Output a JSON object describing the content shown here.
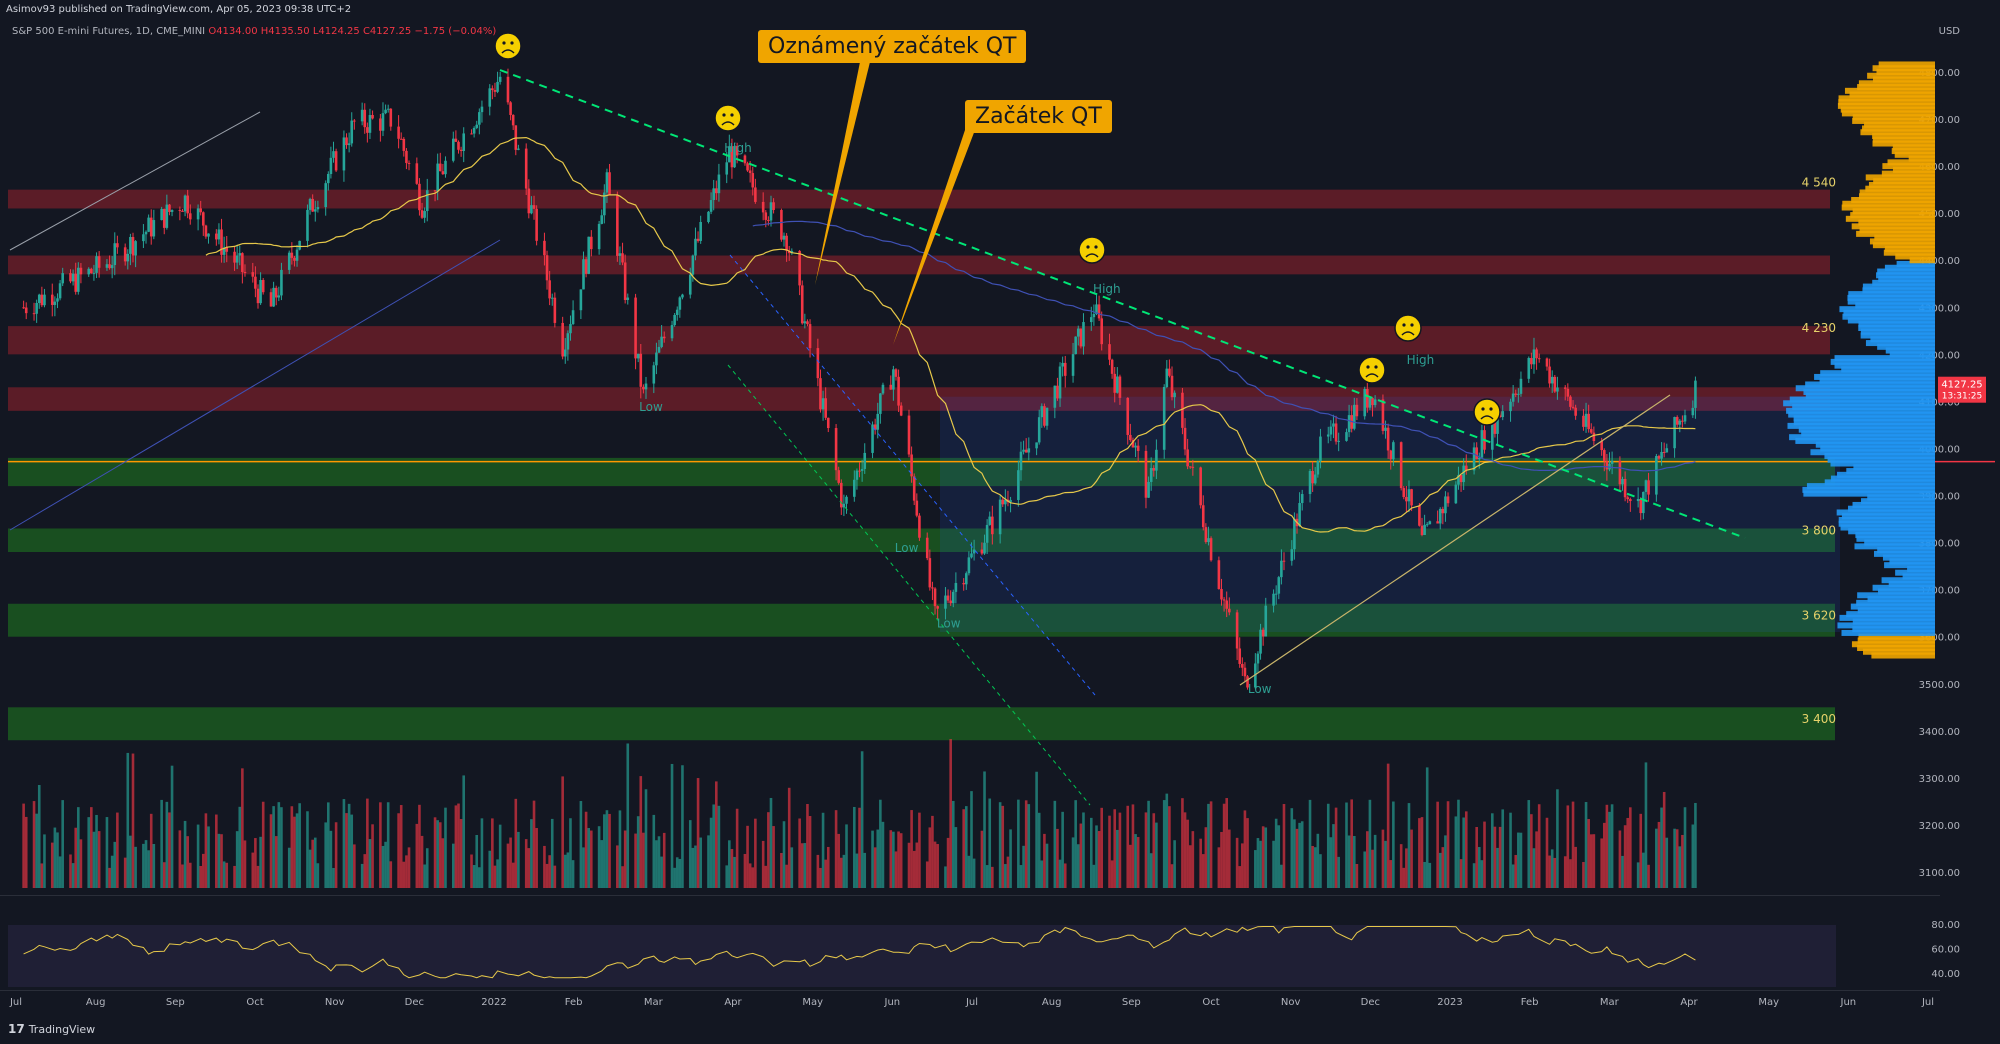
{
  "header": {
    "published": "Asimov93 published on TradingView.com, Apr 05, 2023 09:38 UTC+2"
  },
  "legend": {
    "symbol": "S&P 500 E-mini Futures, 1D, CME_MINI",
    "open": "O4134.00",
    "high": "H4135.50",
    "low": "L4124.25",
    "close": "C4127.25",
    "change": "−1.75 (−0.04%)"
  },
  "currency": "USD",
  "last_price": {
    "value": "4127.25",
    "countdown": "13:31:25"
  },
  "annotations": {
    "announced_qt": "Oznámený začátek QT",
    "start_qt": "Začátek QT"
  },
  "footer": {
    "brand": "TradingView"
  },
  "colors": {
    "background": "#131722",
    "bull": "#26a69a",
    "bear": "#f23645",
    "support_zone": "#1b5e20",
    "resistance_zone": "#7b1f2a",
    "trend_green": "#00e676",
    "ma_yellow": "#e6c84a",
    "ma_blue": "#3f51b5",
    "callout_bg": "#f0a500",
    "vp_blue": "#2196f3",
    "vp_yellow": "#f0a500"
  },
  "chart_data": {
    "type": "candlestick",
    "title": "S&P 500 E-mini Futures, 1D, CME_MINI",
    "ylim": [
      3050,
      4850
    ],
    "y_ticks": [
      4800,
      4700,
      4600,
      4500,
      4400,
      4300,
      4200,
      4100,
      4000,
      3900,
      3800,
      3700,
      3600,
      3500,
      3400,
      3300,
      3200,
      3100
    ],
    "x_ticks": [
      "Jul",
      "Aug",
      "Sep",
      "Oct",
      "Nov",
      "Dec",
      "2022",
      "Feb",
      "Mar",
      "Apr",
      "May",
      "Jun",
      "Jul",
      "Aug",
      "Sep",
      "Oct",
      "Nov",
      "Dec",
      "2023",
      "Feb",
      "Mar",
      "Apr",
      "May",
      "Jun",
      "Jul"
    ],
    "price_path": [
      [
        "2021-07-01",
        4300
      ],
      [
        "2021-08-01",
        4390
      ],
      [
        "2021-09-01",
        4530
      ],
      [
        "2021-09-20",
        4400
      ],
      [
        "2021-10-04",
        4300
      ],
      [
        "2021-10-20",
        4520
      ],
      [
        "2021-11-05",
        4690
      ],
      [
        "2021-11-20",
        4700
      ],
      [
        "2021-12-01",
        4520
      ],
      [
        "2021-12-15",
        4650
      ],
      [
        "2021-12-31",
        4790
      ],
      [
        "2022-01-24",
        4220
      ],
      [
        "2022-02-10",
        4560
      ],
      [
        "2022-02-24",
        4110
      ],
      [
        "2022-03-29",
        4630
      ],
      [
        "2022-04-20",
        4450
      ],
      [
        "2022-05-12",
        3870
      ],
      [
        "2022-05-31",
        4170
      ],
      [
        "2022-06-16",
        3640
      ],
      [
        "2022-07-10",
        3860
      ],
      [
        "2022-08-16",
        4300
      ],
      [
        "2022-09-06",
        3900
      ],
      [
        "2022-09-13",
        4160
      ],
      [
        "2022-10-13",
        3500
      ],
      [
        "2022-11-10",
        3990
      ],
      [
        "2022-12-01",
        4120
      ],
      [
        "2022-12-20",
        3800
      ],
      [
        "2023-01-10",
        4000
      ],
      [
        "2023-02-02",
        4200
      ],
      [
        "2023-03-13",
        3880
      ],
      [
        "2023-04-04",
        4127
      ]
    ],
    "horizontal_levels": [
      {
        "label": "4 540",
        "value": 4540
      },
      {
        "label": "4 230",
        "value": 4230
      },
      {
        "label": "3 800",
        "value": 3800
      },
      {
        "label": "3 620",
        "value": 3620
      },
      {
        "label": "3 400",
        "value": 3400
      }
    ],
    "resistance_zones": [
      [
        4510,
        4550
      ],
      [
        4370,
        4410
      ],
      [
        4200,
        4260
      ],
      [
        4080,
        4130
      ]
    ],
    "support_zones": [
      [
        3920,
        3980
      ],
      [
        3780,
        3830
      ],
      [
        3600,
        3670
      ],
      [
        3380,
        3450
      ]
    ],
    "swing_labels": [
      {
        "text": "High",
        "x": "2022-03-29",
        "y": 4630
      },
      {
        "text": "High",
        "x": "2022-08-16",
        "y": 4330
      },
      {
        "text": "High",
        "x": "2022-12-13",
        "y": 4180
      },
      {
        "text": "Low",
        "x": "2022-02-24",
        "y": 4080
      },
      {
        "text": "Low",
        "x": "2022-06-01",
        "y": 3780
      },
      {
        "text": "Low",
        "x": "2022-06-17",
        "y": 3620
      },
      {
        "text": "Low",
        "x": "2022-10-13",
        "y": 3480
      }
    ],
    "volume_axis": {
      "ylim": [
        3050,
        3400
      ]
    },
    "rsi": {
      "ticks": [
        80,
        60,
        40
      ],
      "ylim": [
        30,
        85
      ]
    },
    "volume_profile_levels": [
      4800,
      4700,
      4600,
      4500,
      4400,
      4300,
      4200,
      4127,
      4000,
      3900,
      3800,
      3700,
      3600
    ]
  }
}
